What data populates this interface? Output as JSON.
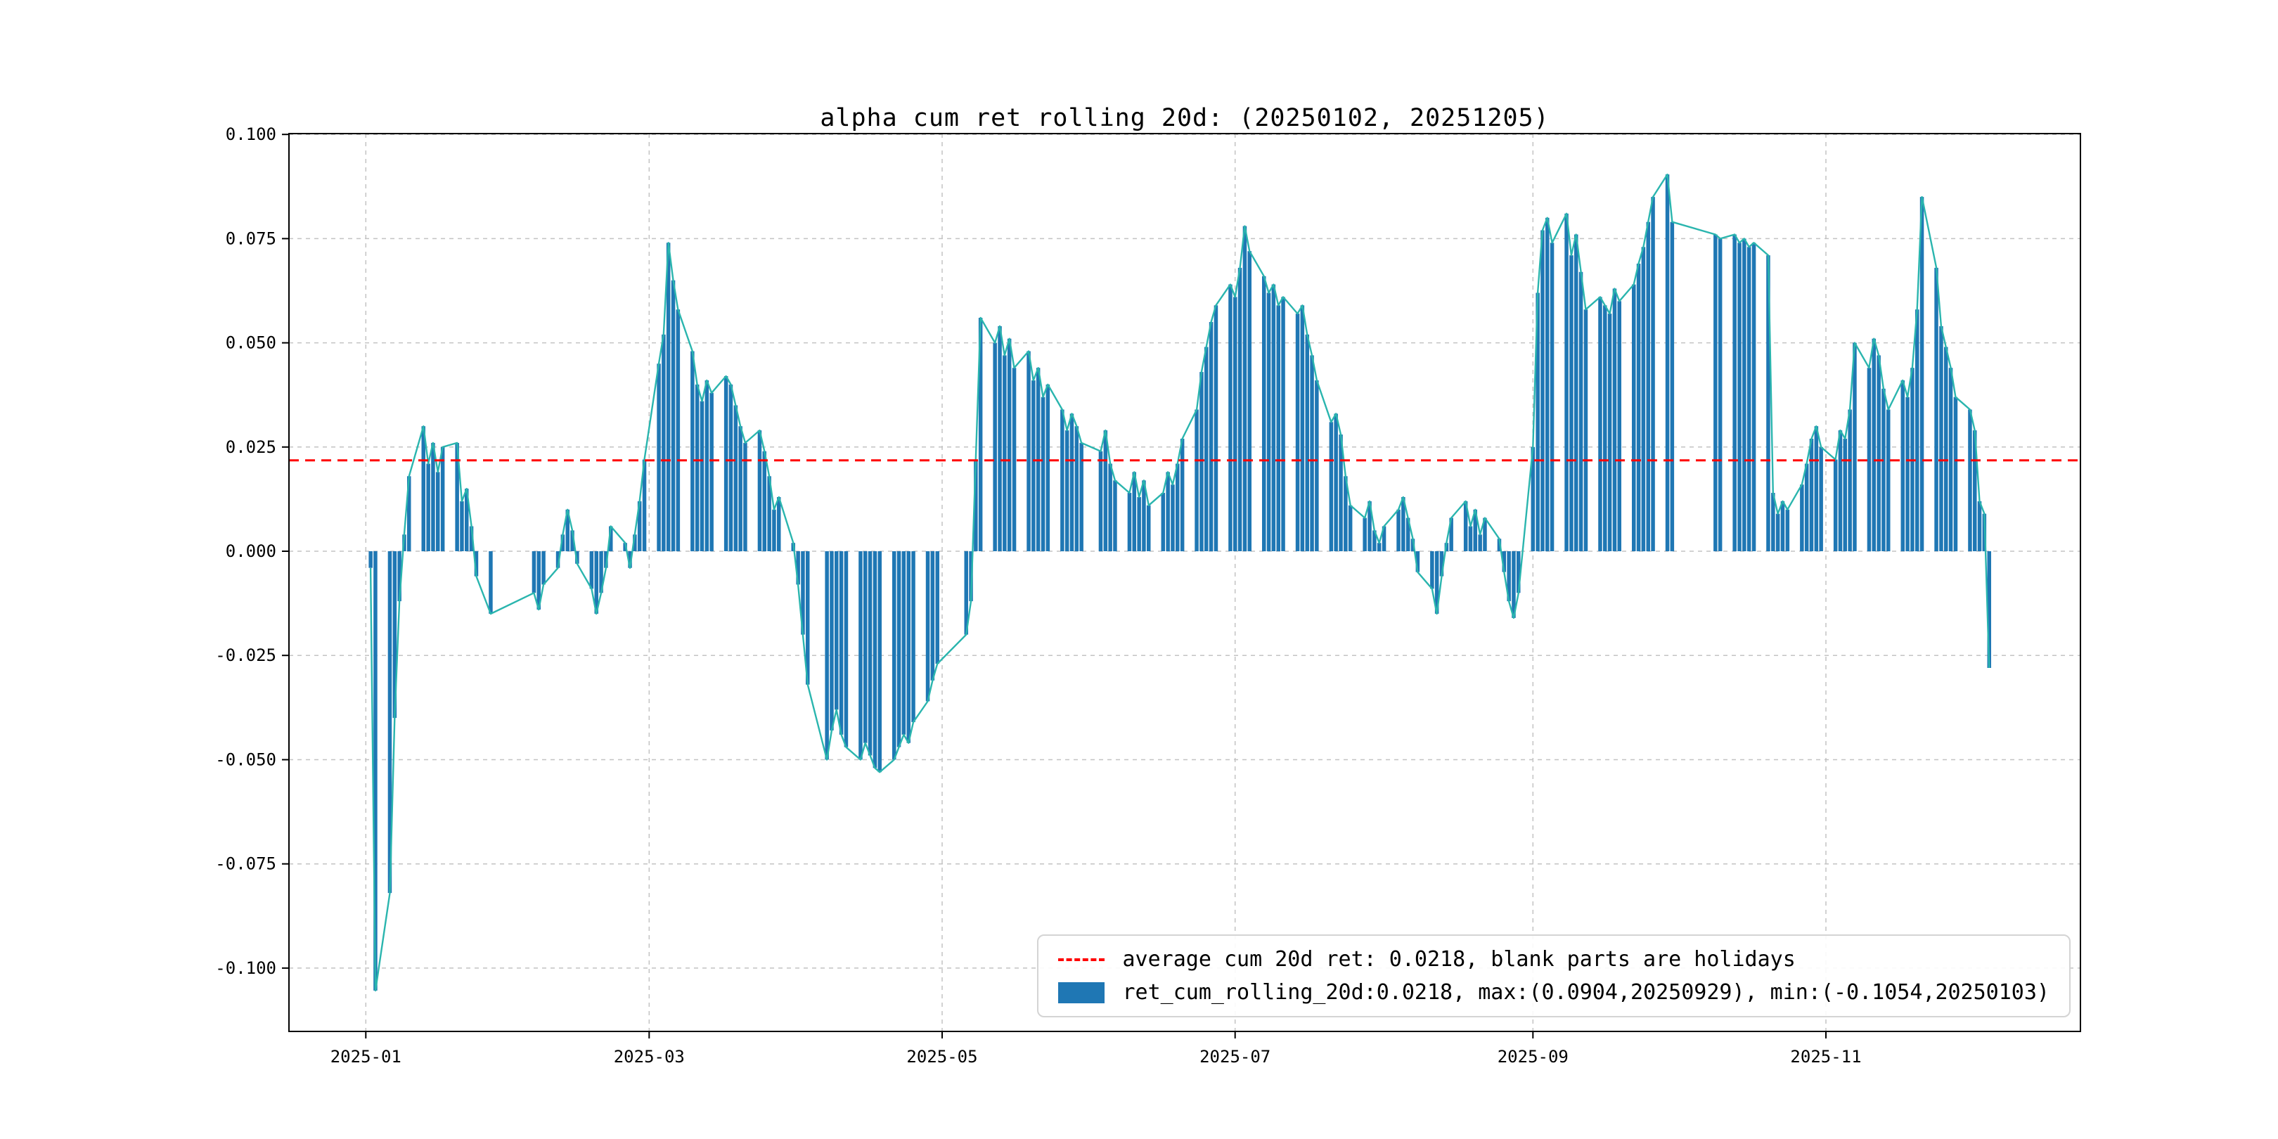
{
  "figure": {
    "title": "alpha cum ret rolling 20d: (20250102, 20251205)",
    "colors": {
      "bar": "#1f77b4",
      "line": "#2ab5ae",
      "avg": "#ff0000",
      "grid": "#c3c3c3",
      "axis": "#000000"
    },
    "legend": {
      "avg_label": "average cum 20d ret: 0.0218, blank parts are holidays",
      "series_label": "ret_cum_rolling_20d:0.0218, max:(0.0904,20250929), min:(-0.1054,20250103)"
    }
  },
  "chart_data": {
    "type": "bar",
    "title": "alpha cum ret rolling 20d: (20250102, 20251205)",
    "xlabel": "",
    "ylabel": "",
    "grid": true,
    "legend_position": "lower right",
    "average": 0.0218,
    "max": {
      "value": 0.0904,
      "date": "20250929"
    },
    "min": {
      "value": -0.1054,
      "date": "20250103"
    },
    "ylim": [
      -0.1152,
      0.1002
    ],
    "xlim": [
      "2024-12-16",
      "2025-12-24"
    ],
    "y_ticks": [
      0.1,
      0.075,
      0.05,
      0.025,
      0.0,
      -0.025,
      -0.05,
      -0.075,
      -0.1
    ],
    "y_tick_labels": [
      "0.100",
      "0.075",
      "0.050",
      "0.025",
      "0.000",
      "-0.025",
      "-0.050",
      "-0.075",
      "-0.100"
    ],
    "x_ticks": [
      "2025-01-01",
      "2025-03-01",
      "2025-05-01",
      "2025-07-01",
      "2025-09-01",
      "2025-11-01"
    ],
    "x_tick_labels": [
      "2025-01",
      "2025-03",
      "2025-05",
      "2025-07",
      "2025-09",
      "2025-11"
    ],
    "series_name": "ret_cum_rolling_20d",
    "points": [
      [
        "2025-01-02",
        -0.004
      ],
      [
        "2025-01-03",
        -0.1054
      ],
      [
        "2025-01-06",
        -0.082
      ],
      [
        "2025-01-07",
        -0.04
      ],
      [
        "2025-01-08",
        -0.012
      ],
      [
        "2025-01-09",
        0.004
      ],
      [
        "2025-01-10",
        0.018
      ],
      [
        "2025-01-13",
        0.03
      ],
      [
        "2025-01-14",
        0.021
      ],
      [
        "2025-01-15",
        0.026
      ],
      [
        "2025-01-16",
        0.019
      ],
      [
        "2025-01-17",
        0.025
      ],
      [
        "2025-01-20",
        0.026
      ],
      [
        "2025-01-21",
        0.012
      ],
      [
        "2025-01-22",
        0.015
      ],
      [
        "2025-01-23",
        0.006
      ],
      [
        "2025-01-24",
        -0.006
      ],
      [
        "2025-01-27",
        -0.015
      ],
      [
        "2025-02-05",
        -0.01
      ],
      [
        "2025-02-06",
        -0.014
      ],
      [
        "2025-02-07",
        -0.008
      ],
      [
        "2025-02-10",
        -0.004
      ],
      [
        "2025-02-11",
        0.004
      ],
      [
        "2025-02-12",
        0.01
      ],
      [
        "2025-02-13",
        0.005
      ],
      [
        "2025-02-14",
        -0.003
      ],
      [
        "2025-02-17",
        -0.009
      ],
      [
        "2025-02-18",
        -0.015
      ],
      [
        "2025-02-19",
        -0.01
      ],
      [
        "2025-02-20",
        -0.004
      ],
      [
        "2025-02-21",
        0.006
      ],
      [
        "2025-02-24",
        0.002
      ],
      [
        "2025-02-25",
        -0.004
      ],
      [
        "2025-02-26",
        0.004
      ],
      [
        "2025-02-27",
        0.012
      ],
      [
        "2025-02-28",
        0.022
      ],
      [
        "2025-03-03",
        0.045
      ],
      [
        "2025-03-04",
        0.052
      ],
      [
        "2025-03-05",
        0.074
      ],
      [
        "2025-03-06",
        0.065
      ],
      [
        "2025-03-07",
        0.058
      ],
      [
        "2025-03-10",
        0.048
      ],
      [
        "2025-03-11",
        0.04
      ],
      [
        "2025-03-12",
        0.036
      ],
      [
        "2025-03-13",
        0.041
      ],
      [
        "2025-03-14",
        0.038
      ],
      [
        "2025-03-17",
        0.042
      ],
      [
        "2025-03-18",
        0.04
      ],
      [
        "2025-03-19",
        0.035
      ],
      [
        "2025-03-20",
        0.03
      ],
      [
        "2025-03-21",
        0.026
      ],
      [
        "2025-03-24",
        0.029
      ],
      [
        "2025-03-25",
        0.024
      ],
      [
        "2025-03-26",
        0.018
      ],
      [
        "2025-03-27",
        0.01
      ],
      [
        "2025-03-28",
        0.013
      ],
      [
        "2025-03-31",
        0.002
      ],
      [
        "2025-04-01",
        -0.008
      ],
      [
        "2025-04-02",
        -0.02
      ],
      [
        "2025-04-03",
        -0.032
      ],
      [
        "2025-04-07",
        -0.05
      ],
      [
        "2025-04-08",
        -0.043
      ],
      [
        "2025-04-09",
        -0.038
      ],
      [
        "2025-04-10",
        -0.044
      ],
      [
        "2025-04-11",
        -0.047
      ],
      [
        "2025-04-14",
        -0.05
      ],
      [
        "2025-04-15",
        -0.046
      ],
      [
        "2025-04-16",
        -0.049
      ],
      [
        "2025-04-17",
        -0.052
      ],
      [
        "2025-04-18",
        -0.053
      ],
      [
        "2025-04-21",
        -0.05
      ],
      [
        "2025-04-22",
        -0.047
      ],
      [
        "2025-04-23",
        -0.044
      ],
      [
        "2025-04-24",
        -0.046
      ],
      [
        "2025-04-25",
        -0.041
      ],
      [
        "2025-04-28",
        -0.036
      ],
      [
        "2025-04-29",
        -0.031
      ],
      [
        "2025-04-30",
        -0.027
      ],
      [
        "2025-05-06",
        -0.02
      ],
      [
        "2025-05-07",
        -0.012
      ],
      [
        "2025-05-08",
        0.022
      ],
      [
        "2025-05-09",
        0.056
      ],
      [
        "2025-05-12",
        0.05
      ],
      [
        "2025-05-13",
        0.054
      ],
      [
        "2025-05-14",
        0.047
      ],
      [
        "2025-05-15",
        0.051
      ],
      [
        "2025-05-16",
        0.044
      ],
      [
        "2025-05-19",
        0.048
      ],
      [
        "2025-05-20",
        0.041
      ],
      [
        "2025-05-21",
        0.044
      ],
      [
        "2025-05-22",
        0.037
      ],
      [
        "2025-05-23",
        0.04
      ],
      [
        "2025-05-26",
        0.034
      ],
      [
        "2025-05-27",
        0.029
      ],
      [
        "2025-05-28",
        0.033
      ],
      [
        "2025-05-29",
        0.03
      ],
      [
        "2025-05-30",
        0.026
      ],
      [
        "2025-06-03",
        0.024
      ],
      [
        "2025-06-04",
        0.029
      ],
      [
        "2025-06-05",
        0.021
      ],
      [
        "2025-06-06",
        0.017
      ],
      [
        "2025-06-09",
        0.014
      ],
      [
        "2025-06-10",
        0.019
      ],
      [
        "2025-06-11",
        0.013
      ],
      [
        "2025-06-12",
        0.017
      ],
      [
        "2025-06-13",
        0.011
      ],
      [
        "2025-06-16",
        0.014
      ],
      [
        "2025-06-17",
        0.019
      ],
      [
        "2025-06-18",
        0.016
      ],
      [
        "2025-06-19",
        0.021
      ],
      [
        "2025-06-20",
        0.027
      ],
      [
        "2025-06-23",
        0.034
      ],
      [
        "2025-06-24",
        0.043
      ],
      [
        "2025-06-25",
        0.049
      ],
      [
        "2025-06-26",
        0.055
      ],
      [
        "2025-06-27",
        0.059
      ],
      [
        "2025-06-30",
        0.064
      ],
      [
        "2025-07-01",
        0.061
      ],
      [
        "2025-07-02",
        0.068
      ],
      [
        "2025-07-03",
        0.078
      ],
      [
        "2025-07-04",
        0.072
      ],
      [
        "2025-07-07",
        0.066
      ],
      [
        "2025-07-08",
        0.062
      ],
      [
        "2025-07-09",
        0.064
      ],
      [
        "2025-07-10",
        0.059
      ],
      [
        "2025-07-11",
        0.061
      ],
      [
        "2025-07-14",
        0.057
      ],
      [
        "2025-07-15",
        0.059
      ],
      [
        "2025-07-16",
        0.052
      ],
      [
        "2025-07-17",
        0.047
      ],
      [
        "2025-07-18",
        0.041
      ],
      [
        "2025-07-21",
        0.031
      ],
      [
        "2025-07-22",
        0.033
      ],
      [
        "2025-07-23",
        0.028
      ],
      [
        "2025-07-24",
        0.018
      ],
      [
        "2025-07-25",
        0.011
      ],
      [
        "2025-07-28",
        0.008
      ],
      [
        "2025-07-29",
        0.012
      ],
      [
        "2025-07-30",
        0.005
      ],
      [
        "2025-07-31",
        0.002
      ],
      [
        "2025-08-01",
        0.006
      ],
      [
        "2025-08-04",
        0.01
      ],
      [
        "2025-08-05",
        0.013
      ],
      [
        "2025-08-06",
        0.008
      ],
      [
        "2025-08-07",
        0.003
      ],
      [
        "2025-08-08",
        -0.005
      ],
      [
        "2025-08-11",
        -0.009
      ],
      [
        "2025-08-12",
        -0.015
      ],
      [
        "2025-08-13",
        -0.006
      ],
      [
        "2025-08-14",
        0.002
      ],
      [
        "2025-08-15",
        0.008
      ],
      [
        "2025-08-18",
        0.012
      ],
      [
        "2025-08-19",
        0.006
      ],
      [
        "2025-08-20",
        0.01
      ],
      [
        "2025-08-21",
        0.004
      ],
      [
        "2025-08-22",
        0.008
      ],
      [
        "2025-08-25",
        0.003
      ],
      [
        "2025-08-26",
        -0.005
      ],
      [
        "2025-08-27",
        -0.012
      ],
      [
        "2025-08-28",
        -0.016
      ],
      [
        "2025-08-29",
        -0.01
      ],
      [
        "2025-09-01",
        0.025
      ],
      [
        "2025-09-02",
        0.062
      ],
      [
        "2025-09-03",
        0.077
      ],
      [
        "2025-09-04",
        0.08
      ],
      [
        "2025-09-05",
        0.074
      ],
      [
        "2025-09-08",
        0.081
      ],
      [
        "2025-09-09",
        0.071
      ],
      [
        "2025-09-10",
        0.076
      ],
      [
        "2025-09-11",
        0.067
      ],
      [
        "2025-09-12",
        0.058
      ],
      [
        "2025-09-15",
        0.061
      ],
      [
        "2025-09-16",
        0.059
      ],
      [
        "2025-09-17",
        0.057
      ],
      [
        "2025-09-18",
        0.063
      ],
      [
        "2025-09-19",
        0.06
      ],
      [
        "2025-09-22",
        0.064
      ],
      [
        "2025-09-23",
        0.069
      ],
      [
        "2025-09-24",
        0.073
      ],
      [
        "2025-09-25",
        0.079
      ],
      [
        "2025-09-26",
        0.085
      ],
      [
        "2025-09-29",
        0.0904
      ],
      [
        "2025-09-30",
        0.079
      ],
      [
        "2025-10-09",
        0.076
      ],
      [
        "2025-10-10",
        0.075
      ],
      [
        "2025-10-13",
        0.076
      ],
      [
        "2025-10-14",
        0.074
      ],
      [
        "2025-10-15",
        0.075
      ],
      [
        "2025-10-16",
        0.073
      ],
      [
        "2025-10-17",
        0.074
      ],
      [
        "2025-10-20",
        0.071
      ],
      [
        "2025-10-21",
        0.014
      ],
      [
        "2025-10-22",
        0.009
      ],
      [
        "2025-10-23",
        0.012
      ],
      [
        "2025-10-24",
        0.01
      ],
      [
        "2025-10-27",
        0.016
      ],
      [
        "2025-10-28",
        0.021
      ],
      [
        "2025-10-29",
        0.027
      ],
      [
        "2025-10-30",
        0.03
      ],
      [
        "2025-10-31",
        0.025
      ],
      [
        "2025-11-03",
        0.022
      ],
      [
        "2025-11-04",
        0.029
      ],
      [
        "2025-11-05",
        0.027
      ],
      [
        "2025-11-06",
        0.034
      ],
      [
        "2025-11-07",
        0.05
      ],
      [
        "2025-11-10",
        0.044
      ],
      [
        "2025-11-11",
        0.051
      ],
      [
        "2025-11-12",
        0.047
      ],
      [
        "2025-11-13",
        0.039
      ],
      [
        "2025-11-14",
        0.034
      ],
      [
        "2025-11-17",
        0.041
      ],
      [
        "2025-11-18",
        0.037
      ],
      [
        "2025-11-19",
        0.044
      ],
      [
        "2025-11-20",
        0.058
      ],
      [
        "2025-11-21",
        0.085
      ],
      [
        "2025-11-24",
        0.068
      ],
      [
        "2025-11-25",
        0.054
      ],
      [
        "2025-11-26",
        0.049
      ],
      [
        "2025-11-27",
        0.044
      ],
      [
        "2025-11-28",
        0.037
      ],
      [
        "2025-12-01",
        0.034
      ],
      [
        "2025-12-02",
        0.029
      ],
      [
        "2025-12-03",
        0.012
      ],
      [
        "2025-12-04",
        0.009
      ],
      [
        "2025-12-05",
        -0.028
      ]
    ]
  }
}
